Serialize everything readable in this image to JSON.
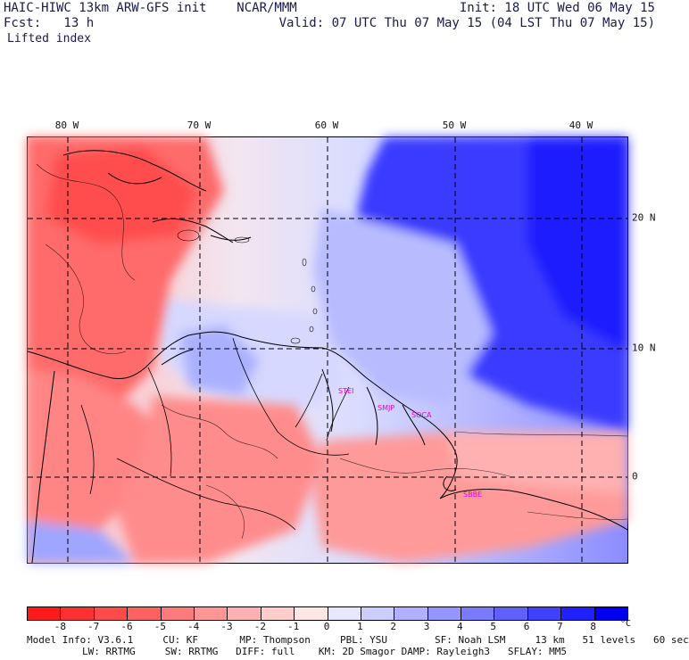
{
  "header": {
    "title": "HAIC-HIWC 13km ARW-GFS init    NCAR/MMM",
    "fcst": "Fcst:   13 h",
    "field": "Lifted index",
    "init": "Init: 18 UTC Wed 06 May 15",
    "valid": "Valid: 07 UTC Thu 07 May 15 (04 LST Thu 07 May 15)"
  },
  "map": {
    "lon_labels": [
      "80 W",
      "70 W",
      "60 W",
      "50 W",
      "40 W"
    ],
    "lat_labels": [
      "20 N",
      "10 N",
      "0"
    ],
    "stations": [
      "STEI",
      "SMJP",
      "SOCA",
      "SBBE"
    ]
  },
  "colorbar": {
    "labels": [
      "-8",
      "-7",
      "-6",
      "-5",
      "-4",
      "-3",
      "-2",
      "-1",
      "0",
      "1",
      "2",
      "3",
      "4",
      "5",
      "6",
      "7",
      "8"
    ],
    "unit": "°C",
    "colors": [
      "#ff1a1a",
      "#ff3030",
      "#ff4a4a",
      "#ff6060",
      "#ff7a7a",
      "#ff9595",
      "#ffb0b0",
      "#ffcccc",
      "#ffe6e6",
      "#e6e6ff",
      "#ccccff",
      "#b0b0ff",
      "#9595ff",
      "#7a7aff",
      "#6060ff",
      "#4040ff",
      "#2020ff",
      "#0000ee"
    ]
  },
  "model_info": {
    "line1": "Model Info: V3.6.1     CU: KF       MP: Thompson     PBL: YSU        SF: Noah LSM     13 km   51 levels   60 sec",
    "line2": "LW: RRTMG     SW: RRTMG   DIFF: full    KM: 2D Smagor DAMP: Rayleigh3   SFLAY: MM5"
  }
}
